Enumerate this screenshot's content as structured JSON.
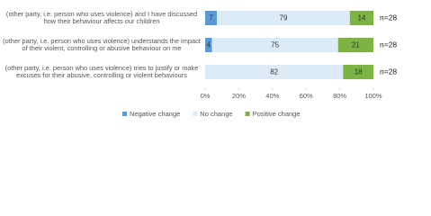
{
  "chart_data": {
    "type": "stacked-bar-horizontal",
    "categories": [
      "(other party, i.e. person who uses violence) and I have discussed how their behaviour affects our children",
      "(other party, i.e. person who uses violence) understands the impact of their violent, controlling or abusive behaviour on me",
      "(other party, i.e. person who uses violence) tries to justify or make excuses for their abusive, controlling or violent behaviours"
    ],
    "series": [
      {
        "name": "Negative change",
        "color": "#5b9bd5",
        "values": [
          7,
          4,
          0
        ]
      },
      {
        "name": "No change",
        "color": "#ddebf7",
        "values": [
          79,
          75,
          82
        ]
      },
      {
        "name": "Positive change",
        "color": "#7cb342",
        "values": [
          14,
          21,
          18
        ]
      }
    ],
    "annotations": [
      "n=28",
      "n=28",
      "n=28"
    ],
    "xlim": [
      0,
      100
    ],
    "xticks": [
      {
        "value": 0,
        "label": "0%"
      },
      {
        "value": 20,
        "label": "20%"
      },
      {
        "value": 40,
        "label": "40%"
      },
      {
        "value": 60,
        "label": "60%"
      },
      {
        "value": 80,
        "label": "80%"
      },
      {
        "value": 100,
        "label": "100%"
      }
    ]
  }
}
